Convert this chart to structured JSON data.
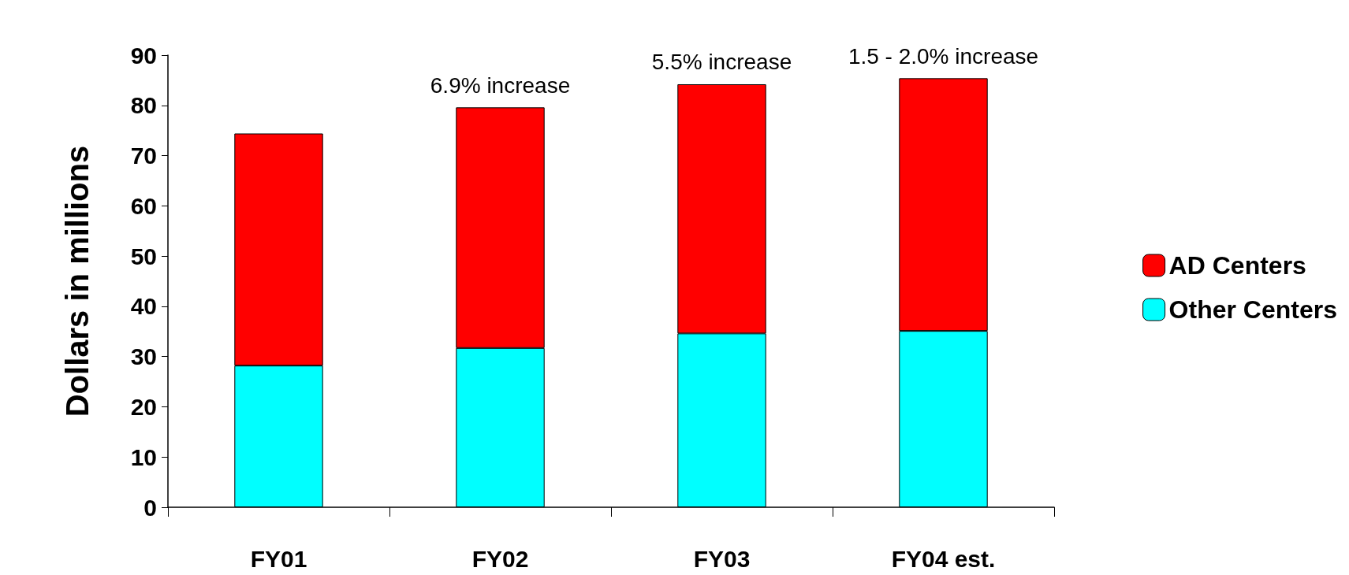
{
  "chart_data": {
    "type": "bar",
    "ylabel": "Dollars in millions",
    "categories": [
      "FY01",
      "FY02",
      "FY03",
      "FY04 est."
    ],
    "stacked": true,
    "series": [
      {
        "name": "Other Centers",
        "color": "#00ffff",
        "values": [
          28.2,
          31.7,
          34.6,
          35.1
        ]
      },
      {
        "name": "AD Centers",
        "color": "#ff0000",
        "values": [
          46.2,
          47.9,
          49.6,
          50.3
        ]
      }
    ],
    "ylim": [
      0,
      90
    ],
    "yticks": [
      0,
      10,
      20,
      30,
      40,
      50,
      60,
      70,
      80,
      90
    ],
    "grid": false,
    "legend": "right",
    "annotations": [
      {
        "text": "6.9% increase",
        "x": "FY02",
        "y": 79.6
      },
      {
        "text": "5.5% increase",
        "x": "FY03",
        "y": 84.2
      },
      {
        "text": "1.5 - 2.0% increase",
        "x": "FY04 est.",
        "y": 85.4
      }
    ]
  }
}
